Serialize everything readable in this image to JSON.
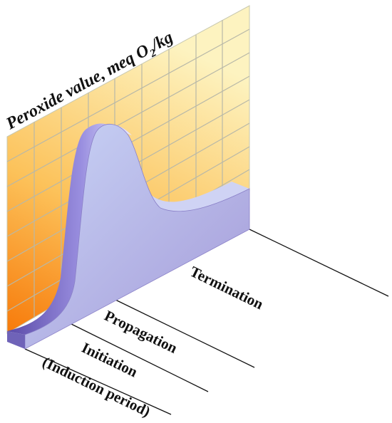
{
  "axis_label": {
    "before": "Peroxide value, meq O",
    "sub": "2",
    "after": "/kg"
  },
  "stages": [
    {
      "name": "Initiation",
      "note": "(Induction period)"
    },
    {
      "name": "Propagation"
    },
    {
      "name": "Termination"
    }
  ]
}
